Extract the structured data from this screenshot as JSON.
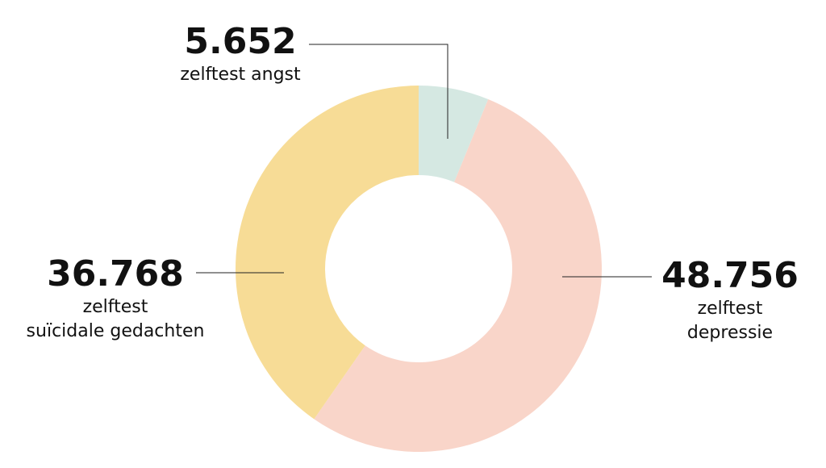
{
  "chart_data": {
    "type": "donut",
    "categories": [
      "zelftest angst",
      "zelftest depressie",
      "zelftest\nsuïcidale gedachten"
    ],
    "values": [
      5652,
      48756,
      36768
    ],
    "value_labels": [
      "5.652",
      "48.756",
      "36.768"
    ],
    "colors": [
      "#d5e8e2",
      "#f9d5c9",
      "#f7dc96"
    ]
  }
}
